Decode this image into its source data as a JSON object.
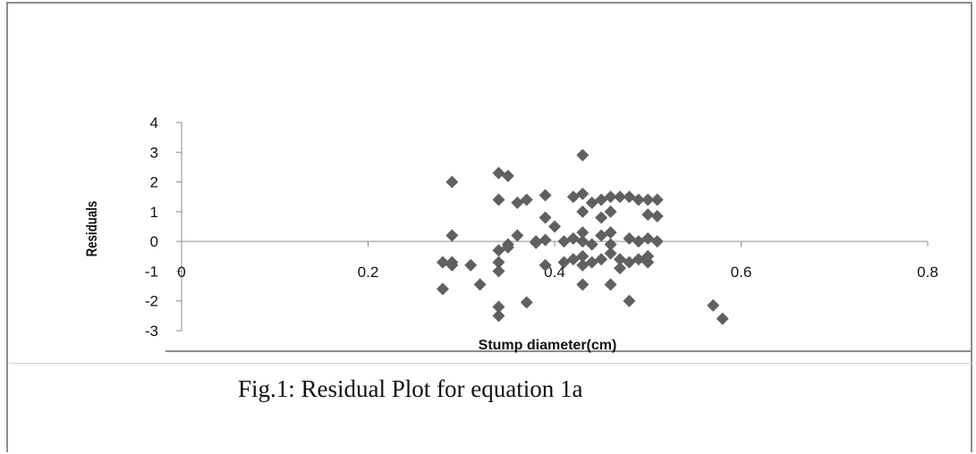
{
  "caption": "Fig.1: Residual Plot for equation 1a",
  "chart_data": {
    "type": "scatter",
    "xlabel": "Stump diameter(cm)",
    "ylabel": "Residuals",
    "xlim": [
      0,
      0.8
    ],
    "ylim": [
      -3,
      4
    ],
    "x_ticks": [
      "0",
      "0.2",
      "0.4",
      "0.6",
      "0.8"
    ],
    "y_ticks": [
      "-3",
      "-2",
      "-1",
      "0",
      "1",
      "2",
      "3",
      "4"
    ],
    "marker": "diamond",
    "marker_color": "#606060",
    "grid": false,
    "points": [
      [
        0.28,
        -0.7
      ],
      [
        0.28,
        -1.6
      ],
      [
        0.29,
        -0.8
      ],
      [
        0.29,
        -0.7
      ],
      [
        0.29,
        2.0
      ],
      [
        0.29,
        0.2
      ],
      [
        0.31,
        -0.8
      ],
      [
        0.32,
        -1.45
      ],
      [
        0.34,
        2.3
      ],
      [
        0.34,
        1.4
      ],
      [
        0.34,
        -0.3
      ],
      [
        0.34,
        -0.7
      ],
      [
        0.34,
        -1.0
      ],
      [
        0.34,
        -2.2
      ],
      [
        0.34,
        -2.5
      ],
      [
        0.35,
        2.2
      ],
      [
        0.35,
        -0.1
      ],
      [
        0.35,
        -0.2
      ],
      [
        0.36,
        1.3
      ],
      [
        0.36,
        0.2
      ],
      [
        0.37,
        1.4
      ],
      [
        0.37,
        -2.05
      ],
      [
        0.38,
        0.0
      ],
      [
        0.38,
        -0.05
      ],
      [
        0.39,
        1.55
      ],
      [
        0.39,
        0.8
      ],
      [
        0.39,
        0.05
      ],
      [
        0.39,
        -0.8
      ],
      [
        0.4,
        0.5
      ],
      [
        0.41,
        0.0
      ],
      [
        0.41,
        -0.7
      ],
      [
        0.42,
        1.5
      ],
      [
        0.42,
        0.1
      ],
      [
        0.42,
        -0.6
      ],
      [
        0.43,
        2.9
      ],
      [
        0.43,
        1.6
      ],
      [
        0.43,
        1.0
      ],
      [
        0.43,
        0.3
      ],
      [
        0.43,
        0.0
      ],
      [
        0.43,
        -0.5
      ],
      [
        0.43,
        -0.8
      ],
      [
        0.43,
        -1.45
      ],
      [
        0.44,
        1.3
      ],
      [
        0.44,
        -0.1
      ],
      [
        0.44,
        -0.7
      ],
      [
        0.45,
        1.4
      ],
      [
        0.45,
        0.8
      ],
      [
        0.45,
        0.2
      ],
      [
        0.45,
        -0.6
      ],
      [
        0.46,
        1.5
      ],
      [
        0.46,
        1.0
      ],
      [
        0.46,
        0.3
      ],
      [
        0.46,
        -0.1
      ],
      [
        0.46,
        -0.4
      ],
      [
        0.46,
        -1.45
      ],
      [
        0.47,
        1.5
      ],
      [
        0.47,
        -0.6
      ],
      [
        0.47,
        -0.9
      ],
      [
        0.48,
        1.5
      ],
      [
        0.48,
        0.1
      ],
      [
        0.48,
        -0.7
      ],
      [
        0.48,
        -2.0
      ],
      [
        0.49,
        1.4
      ],
      [
        0.49,
        0.0
      ],
      [
        0.49,
        -0.6
      ],
      [
        0.5,
        1.4
      ],
      [
        0.5,
        0.9
      ],
      [
        0.5,
        0.1
      ],
      [
        0.5,
        -0.5
      ],
      [
        0.5,
        -0.7
      ],
      [
        0.51,
        1.4
      ],
      [
        0.51,
        0.85
      ],
      [
        0.51,
        0.0
      ],
      [
        0.57,
        -2.15
      ],
      [
        0.58,
        -2.6
      ]
    ]
  }
}
